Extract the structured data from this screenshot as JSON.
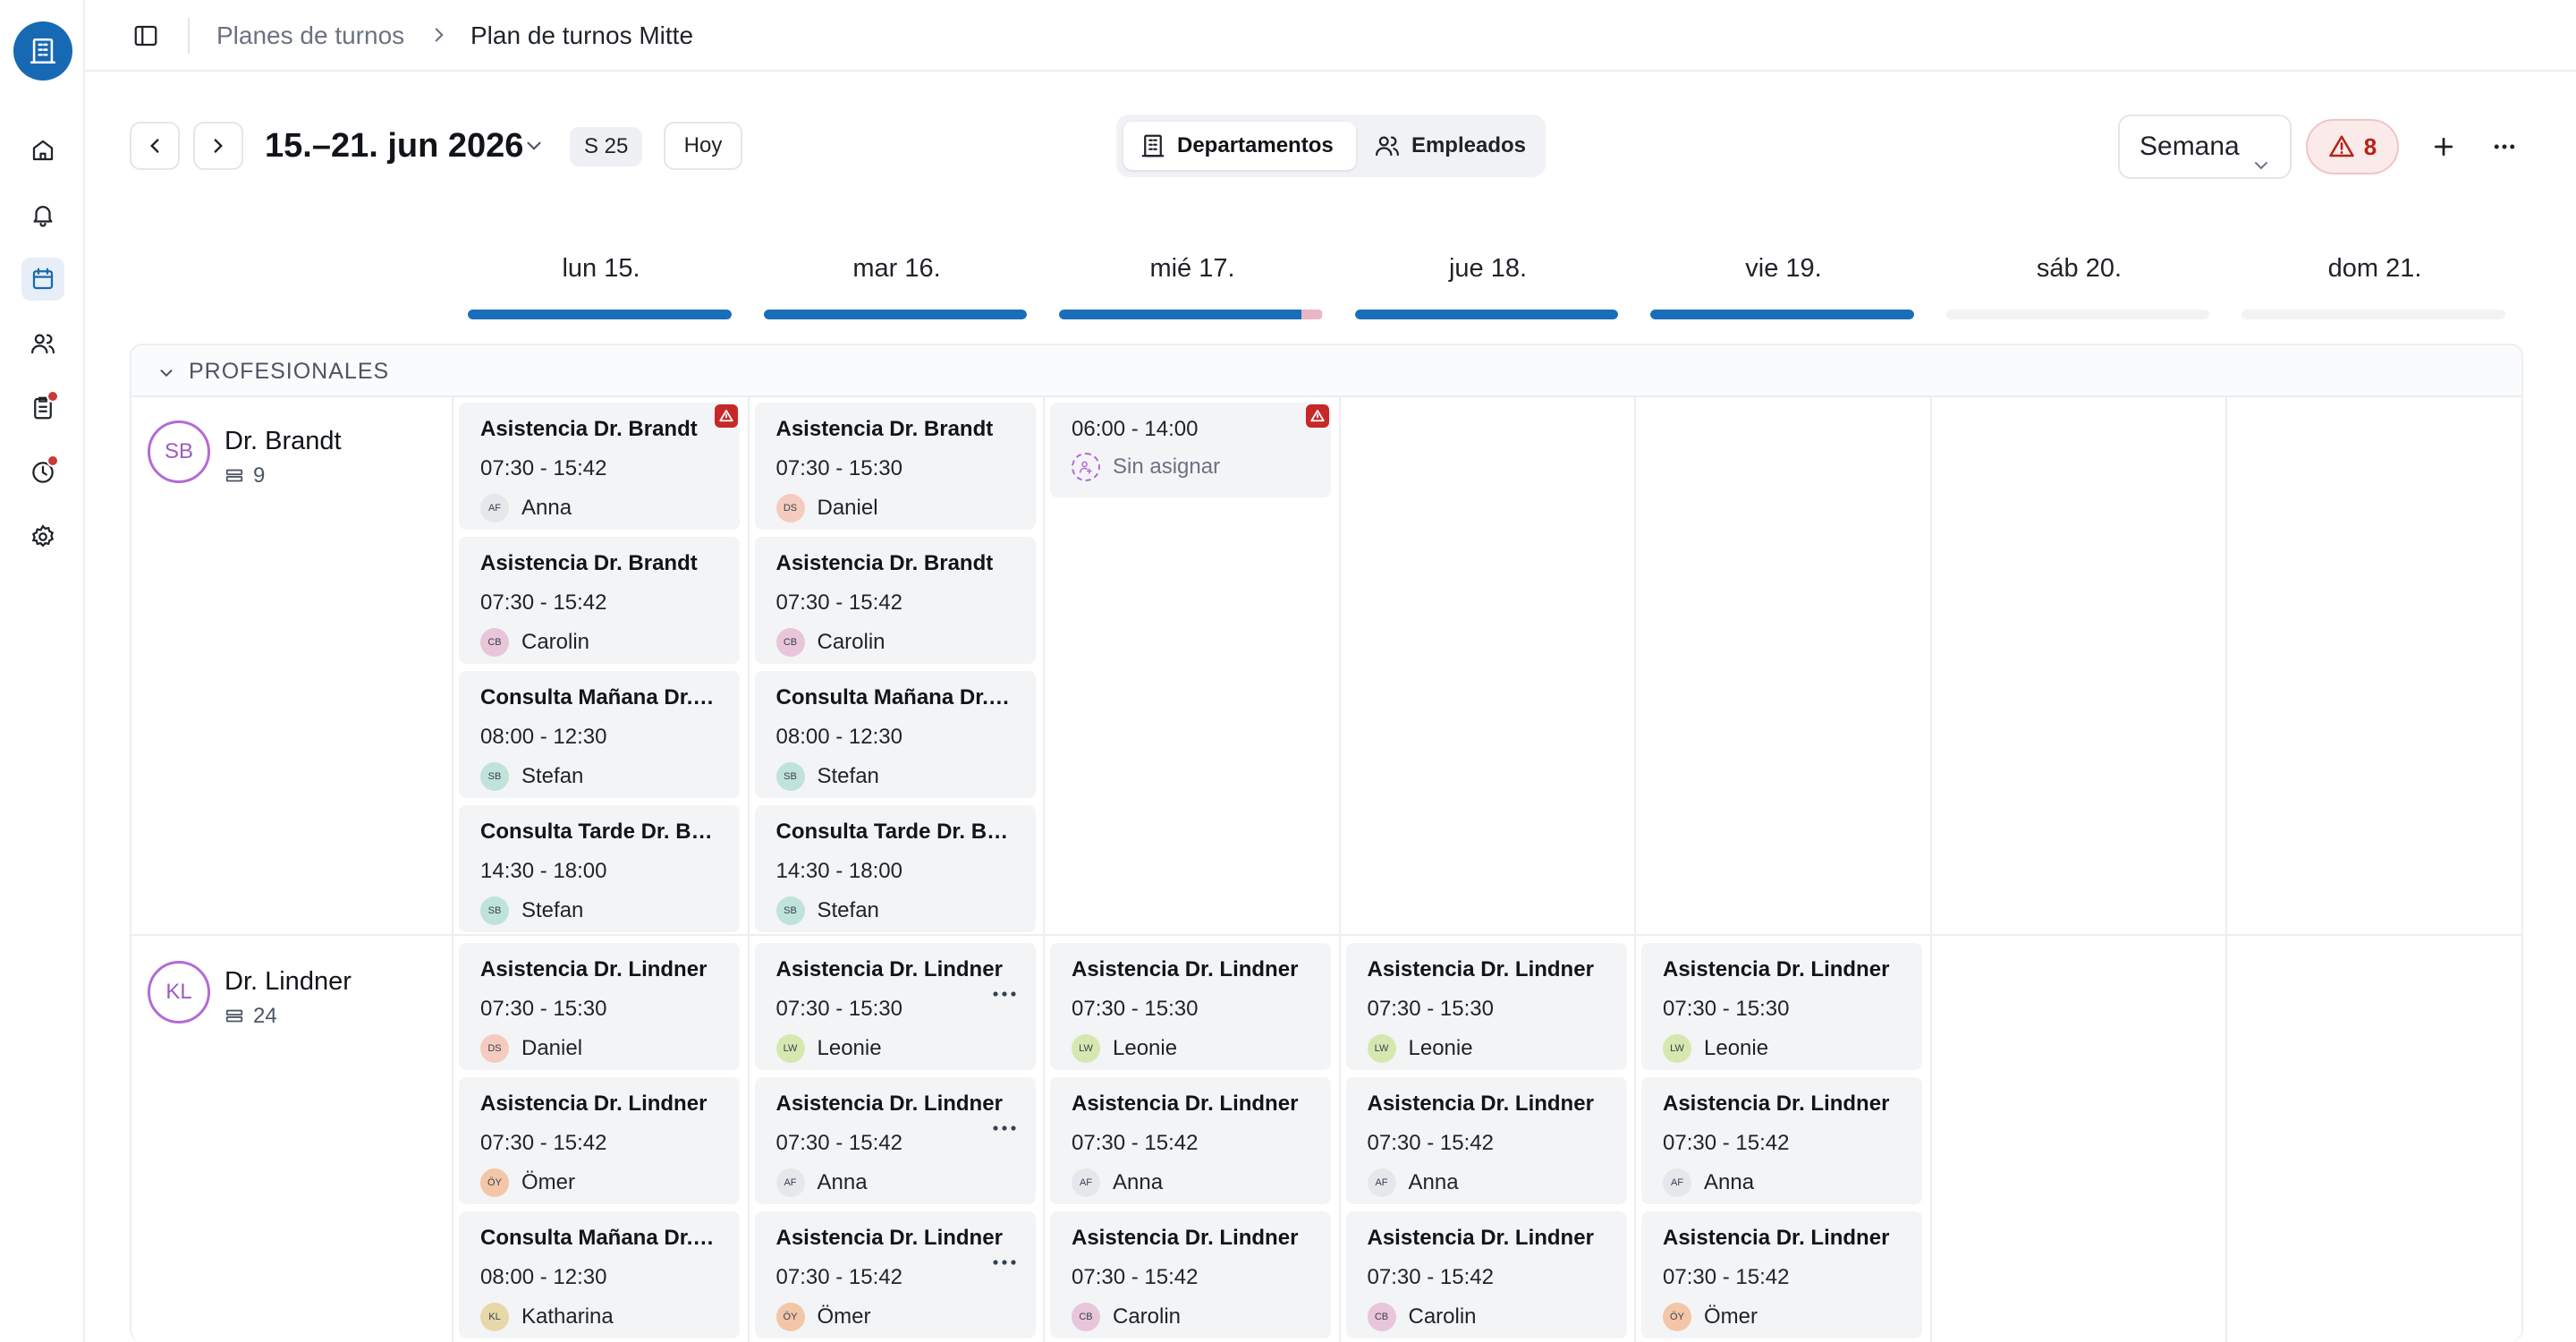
{
  "breadcrumb": {
    "parent": "Planes de turnos",
    "current": "Plan de turnos Mitte"
  },
  "toolbar": {
    "date_range": "15.–21. jun 2026",
    "week_badge": "S 25",
    "today_label": "Hoy",
    "view_departments": "Departamentos",
    "view_employees": "Empleados",
    "period_select": "Semana",
    "alert_count": "8"
  },
  "days": [
    {
      "label": "lun 15.",
      "coverage": 1.0
    },
    {
      "label": "mar 16.",
      "coverage": 1.0
    },
    {
      "label": "mié 17.",
      "coverage": 0.92
    },
    {
      "label": "jue 18.",
      "coverage": 1.0
    },
    {
      "label": "vie 19.",
      "coverage": 1.0
    },
    {
      "label": "sáb 20.",
      "coverage": 0
    },
    {
      "label": "dom 21.",
      "coverage": 0
    }
  ],
  "section": {
    "title": "PROFESIONALES"
  },
  "rows": [
    {
      "initials": "SB",
      "name": "Dr. Brandt",
      "count": "9",
      "days": [
        [
          {
            "title": "Asistencia Dr. Brandt",
            "time": "07:30 - 15:42",
            "initials": "AF",
            "employee": "Anna",
            "av": "#e5e7eb",
            "warning": true
          },
          {
            "title": "Asistencia Dr. Brandt",
            "time": "07:30 - 15:42",
            "initials": "CB",
            "employee": "Carolin",
            "av": "#e8c5d9"
          },
          {
            "title": "Consulta Mañana Dr. Brandt",
            "time": "08:00 - 12:30",
            "initials": "SB",
            "employee": "Stefan",
            "av": "#bfe3da"
          },
          {
            "title": "Consulta Tarde Dr. Brandt",
            "time": "14:30 - 18:00",
            "initials": "SB",
            "employee": "Stefan",
            "av": "#bfe3da"
          }
        ],
        [
          {
            "title": "Asistencia Dr. Brandt",
            "time": "07:30 - 15:30",
            "initials": "DS",
            "employee": "Daniel",
            "av": "#f6cbbf"
          },
          {
            "title": "Asistencia Dr. Brandt",
            "time": "07:30 - 15:42",
            "initials": "CB",
            "employee": "Carolin",
            "av": "#e8c5d9"
          },
          {
            "title": "Consulta Mañana Dr. Brandt",
            "time": "08:00 - 12:30",
            "initials": "SB",
            "employee": "Stefan",
            "av": "#bfe3da"
          },
          {
            "title": "Consulta Tarde Dr. Brandt",
            "time": "14:30 - 18:00",
            "initials": "SB",
            "employee": "Stefan",
            "av": "#bfe3da"
          }
        ],
        [
          {
            "title": "",
            "time": "06:00 - 14:00",
            "initials": "",
            "employee": "Sin asignar",
            "unassigned": true,
            "warning": true
          }
        ],
        [],
        [],
        [],
        []
      ]
    },
    {
      "initials": "KL",
      "name": "Dr. Lindner",
      "count": "24",
      "days": [
        [
          {
            "title": "Asistencia Dr. Lindner",
            "time": "07:30 - 15:30",
            "initials": "DS",
            "employee": "Daniel",
            "av": "#f6cbbf"
          },
          {
            "title": "Asistencia Dr. Lindner",
            "time": "07:30 - 15:42",
            "initials": "ÖY",
            "employee": "Ömer",
            "av": "#f3c6a8"
          },
          {
            "title": "Consulta Mañana Dr. Lindner",
            "time": "08:00 - 12:30",
            "initials": "KL",
            "employee": "Katharina",
            "av": "#e6d8a8"
          }
        ],
        [
          {
            "title": "Asistencia Dr. Lindner",
            "time": "07:30 - 15:30",
            "initials": "LW",
            "employee": "Leonie",
            "av": "#d6e8b0",
            "more": true
          },
          {
            "title": "Asistencia Dr. Lindner",
            "time": "07:30 - 15:42",
            "initials": "AF",
            "employee": "Anna",
            "av": "#e5e7eb",
            "more": true
          },
          {
            "title": "Asistencia Dr. Lindner",
            "time": "07:30 - 15:42",
            "initials": "ÖY",
            "employee": "Ömer",
            "av": "#f3c6a8",
            "more": true
          }
        ],
        [
          {
            "title": "Asistencia Dr. Lindner",
            "time": "07:30 - 15:30",
            "initials": "LW",
            "employee": "Leonie",
            "av": "#d6e8b0"
          },
          {
            "title": "Asistencia Dr. Lindner",
            "time": "07:30 - 15:42",
            "initials": "AF",
            "employee": "Anna",
            "av": "#e5e7eb"
          },
          {
            "title": "Asistencia Dr. Lindner",
            "time": "07:30 - 15:42",
            "initials": "CB",
            "employee": "Carolin",
            "av": "#e8c5d9"
          }
        ],
        [
          {
            "title": "Asistencia Dr. Lindner",
            "time": "07:30 - 15:30",
            "initials": "LW",
            "employee": "Leonie",
            "av": "#d6e8b0"
          },
          {
            "title": "Asistencia Dr. Lindner",
            "time": "07:30 - 15:42",
            "initials": "AF",
            "employee": "Anna",
            "av": "#e5e7eb"
          },
          {
            "title": "Asistencia Dr. Lindner",
            "time": "07:30 - 15:42",
            "initials": "CB",
            "employee": "Carolin",
            "av": "#e8c5d9"
          }
        ],
        [
          {
            "title": "Asistencia Dr. Lindner",
            "time": "07:30 - 15:30",
            "initials": "LW",
            "employee": "Leonie",
            "av": "#d6e8b0"
          },
          {
            "title": "Asistencia Dr. Lindner",
            "time": "07:30 - 15:42",
            "initials": "AF",
            "employee": "Anna",
            "av": "#e5e7eb"
          },
          {
            "title": "Asistencia Dr. Lindner",
            "time": "07:30 - 15:42",
            "initials": "ÖY",
            "employee": "Ömer",
            "av": "#f3c6a8"
          }
        ],
        [],
        []
      ]
    }
  ],
  "colors": {
    "accent": "#1769b3",
    "coverage_bar": "#1a6db8",
    "alert": "#c62828"
  }
}
